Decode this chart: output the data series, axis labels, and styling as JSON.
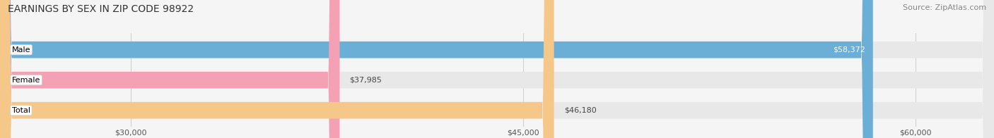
{
  "title": "EARNINGS BY SEX IN ZIP CODE 98922",
  "source": "Source: ZipAtlas.com",
  "categories": [
    "Male",
    "Female",
    "Total"
  ],
  "values": [
    58372,
    37985,
    46180
  ],
  "bar_colors": [
    "#6baed6",
    "#f4a0b5",
    "#f5c88a"
  ],
  "bar_edge_colors": [
    "#5a9ec6",
    "#e890a5",
    "#e5b87a"
  ],
  "x_min": 25000,
  "x_max": 63000,
  "x_ticks": [
    30000,
    45000,
    60000
  ],
  "x_tick_labels": [
    "$30,000",
    "$45,000",
    "$60,000"
  ],
  "background_color": "#f5f5f5",
  "bar_background_color": "#e8e8e8",
  "title_fontsize": 10,
  "source_fontsize": 8,
  "label_fontsize": 8,
  "value_fontsize": 8,
  "category_fontsize": 8,
  "bar_height": 0.55,
  "figsize": [
    14.06,
    1.96
  ],
  "dpi": 100
}
